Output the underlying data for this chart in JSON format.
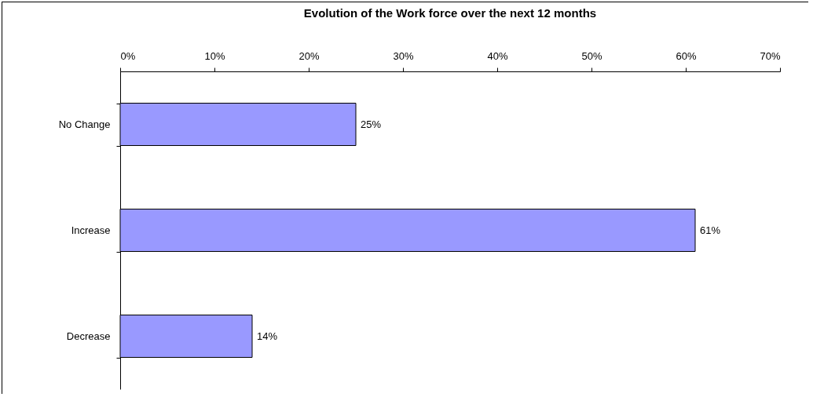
{
  "chart_data": {
    "type": "bar",
    "orientation": "horizontal",
    "title": "Evolution of the Work force over the next 12 months",
    "categories": [
      "No Change",
      "Increase",
      "Decrease"
    ],
    "values": [
      25,
      61,
      14
    ],
    "value_labels": [
      "25%",
      "61%",
      "14%"
    ],
    "color": "#9999ff",
    "xlim": [
      0,
      70
    ],
    "xticks": [
      {
        "value": 0,
        "label": "0%"
      },
      {
        "value": 10,
        "label": "10%"
      },
      {
        "value": 20,
        "label": "20%"
      },
      {
        "value": 30,
        "label": "30%"
      },
      {
        "value": 40,
        "label": "40%"
      },
      {
        "value": 50,
        "label": "50%"
      },
      {
        "value": 60,
        "label": "60%"
      },
      {
        "value": 70,
        "label": "70%"
      }
    ],
    "grid": false
  }
}
